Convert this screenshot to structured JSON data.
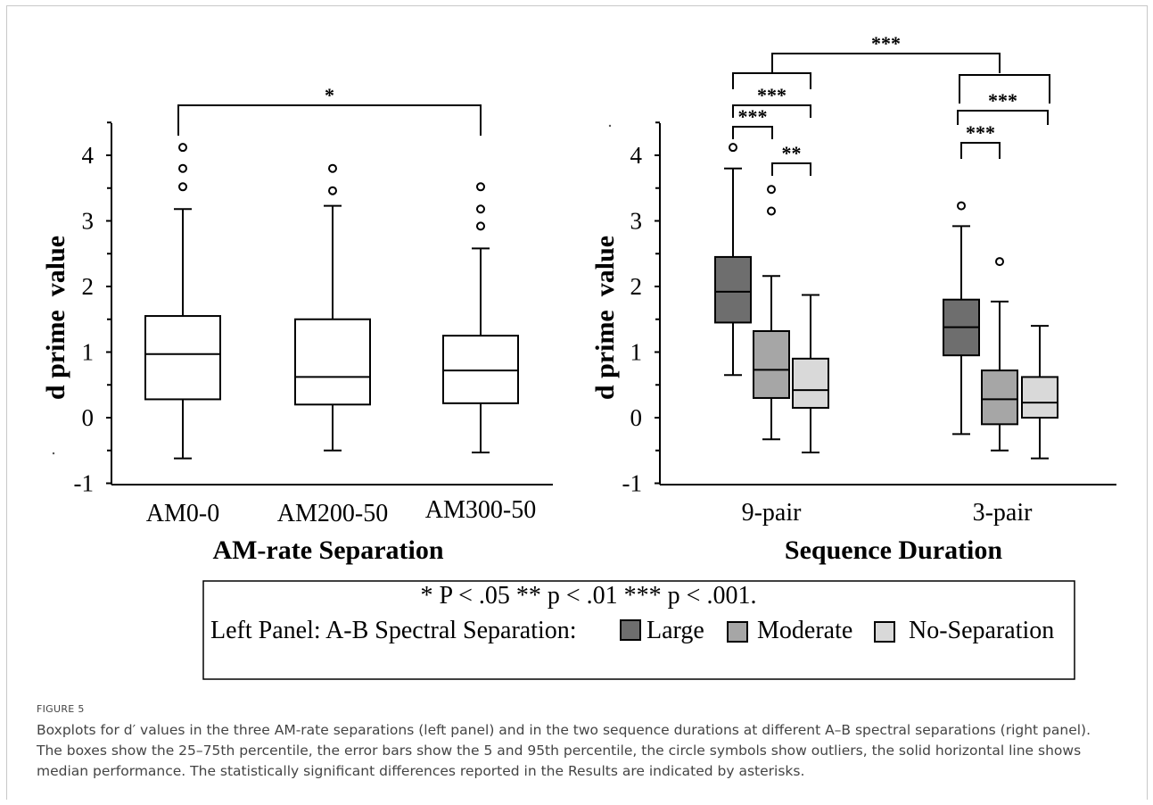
{
  "chart_data": [
    {
      "type": "box",
      "panel": "left",
      "ylabel": "d prime  value",
      "xlabel": "AM-rate Separation",
      "ylim": [
        -1,
        4.5
      ],
      "yticks": [
        "4",
        "3",
        "2",
        "1",
        "0",
        "-1"
      ],
      "categories": [
        "AM0-0",
        "AM200-50",
        "AM300-50"
      ],
      "boxes": [
        {
          "category": "AM0-0",
          "whisker_low": -0.62,
          "q1": 0.28,
          "median": 0.97,
          "q3": 1.55,
          "whisker_high": 3.18,
          "outliers": [
            3.52,
            3.8,
            4.12
          ]
        },
        {
          "category": "AM200-50",
          "whisker_low": -0.5,
          "q1": 0.2,
          "median": 0.62,
          "q3": 1.5,
          "whisker_high": 3.23,
          "outliers": [
            3.46,
            3.8
          ]
        },
        {
          "category": "AM300-50",
          "whisker_low": -0.53,
          "q1": 0.22,
          "median": 0.72,
          "q3": 1.25,
          "whisker_high": 2.58,
          "outliers": [
            2.92,
            3.18,
            3.52
          ]
        }
      ],
      "significance": [
        {
          "from": "AM0-0",
          "to": "AM300-50",
          "label": "*"
        }
      ]
    },
    {
      "type": "box",
      "panel": "right",
      "ylabel": "d prime  value",
      "xlabel": "Sequence Duration",
      "ylim": [
        -1,
        4.5
      ],
      "yticks": [
        "4",
        "3",
        "2",
        "1",
        "0",
        "-1"
      ],
      "categories": [
        "9-pair",
        "3-pair"
      ],
      "series": [
        {
          "name": "Large",
          "color": "#6e6e6e",
          "boxes": [
            {
              "category": "9-pair",
              "whisker_low": 0.65,
              "q1": 1.45,
              "median": 1.92,
              "q3": 2.45,
              "whisker_high": 3.8,
              "outliers": [
                4.12
              ]
            },
            {
              "category": "3-pair",
              "whisker_low": -0.25,
              "q1": 0.95,
              "median": 1.38,
              "q3": 1.8,
              "whisker_high": 2.92,
              "outliers": [
                3.23
              ]
            }
          ]
        },
        {
          "name": "Moderate",
          "color": "#a6a6a6",
          "boxes": [
            {
              "category": "9-pair",
              "whisker_low": -0.33,
              "q1": 0.3,
              "median": 0.73,
              "q3": 1.32,
              "whisker_high": 2.16,
              "outliers": [
                3.15,
                3.48
              ]
            },
            {
              "category": "3-pair",
              "whisker_low": -0.5,
              "q1": -0.1,
              "median": 0.28,
              "q3": 0.72,
              "whisker_high": 1.77,
              "outliers": [
                2.38
              ]
            }
          ]
        },
        {
          "name": "No-Separation",
          "color": "#d9d9d9",
          "boxes": [
            {
              "category": "9-pair",
              "whisker_low": -0.53,
              "q1": 0.15,
              "median": 0.42,
              "q3": 0.9,
              "whisker_high": 1.87,
              "outliers": []
            },
            {
              "category": "3-pair",
              "whisker_low": -0.62,
              "q1": 0.0,
              "median": 0.23,
              "q3": 0.62,
              "whisker_high": 1.4,
              "outliers": []
            }
          ]
        }
      ],
      "significance": [
        "***",
        "***",
        "***",
        "**",
        "***",
        "***"
      ]
    }
  ],
  "legend": {
    "sig_line": "* P < .05      ** p < .01      *** p < .001.",
    "panel_label": "Left Panel: A-B Spectral Separation:",
    "items": [
      {
        "label": "Large",
        "color": "#6e6e6e"
      },
      {
        "label": "Moderate",
        "color": "#a6a6a6"
      },
      {
        "label": "No-Separation",
        "color": "#d9d9d9"
      }
    ]
  },
  "caption": {
    "label": "FIGURE 5",
    "text": "Boxplots for  d′ values in the three AM-rate separations (left panel) and in the two sequence durations at different A–B spectral separations (right panel). The boxes show the 25–75th percentile, the error bars show the 5 and 95th percentile, the circle symbols show outliers, the solid horizontal line shows median performance. The statistically significant differences reported in the Results are indicated by asterisks."
  }
}
